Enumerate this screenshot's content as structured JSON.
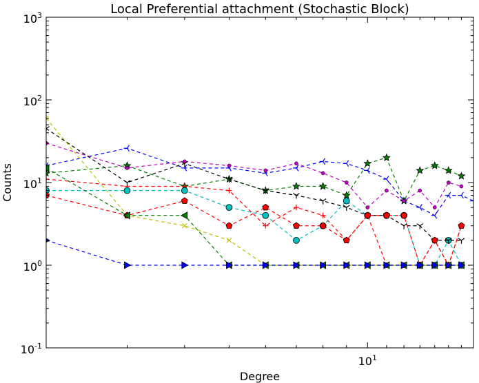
{
  "chart_data": {
    "type": "line",
    "title": "Local Preferential attachment (Stochastic Block)",
    "xlabel": "Degree",
    "ylabel": "Counts",
    "xscale": "log",
    "yscale": "log",
    "xlim": [
      2,
      17
    ],
    "ylim": [
      0.1,
      1000
    ],
    "grid": false,
    "legend": "none",
    "x_ticks": [
      {
        "value": 10,
        "base": "10",
        "exp": "1"
      }
    ],
    "y_ticks": [
      {
        "value": 0.1,
        "base": "10",
        "exp": "-1"
      },
      {
        "value": 1,
        "base": "10",
        "exp": "0"
      },
      {
        "value": 10,
        "base": "10",
        "exp": "1"
      },
      {
        "value": 100,
        "base": "10",
        "exp": "2"
      },
      {
        "value": 1000,
        "base": "10",
        "exp": "3"
      }
    ],
    "series": [
      {
        "color": "#0000ff",
        "marker": "tri_left",
        "points": [
          [
            2,
            16
          ],
          [
            3,
            26
          ],
          [
            4,
            15
          ],
          [
            5,
            15
          ],
          [
            6,
            13
          ],
          [
            7,
            15
          ],
          [
            8,
            18
          ],
          [
            9,
            17
          ],
          [
            10,
            14
          ],
          [
            11,
            11
          ],
          [
            12,
            6
          ],
          [
            13,
            5
          ],
          [
            14,
            4
          ],
          [
            15,
            7
          ],
          [
            16,
            7
          ],
          [
            17,
            6
          ]
        ]
      },
      {
        "color": "#008000",
        "marker": "star",
        "points": [
          [
            2,
            13
          ],
          [
            3,
            16
          ],
          [
            4,
            9
          ],
          [
            5,
            11
          ],
          [
            6,
            8
          ],
          [
            7,
            9
          ],
          [
            8,
            9
          ],
          [
            9,
            7
          ],
          [
            10,
            17
          ],
          [
            11,
            20
          ],
          [
            12,
            6
          ],
          [
            13,
            14
          ],
          [
            14,
            16
          ],
          [
            15,
            14
          ],
          [
            16,
            12
          ]
        ]
      },
      {
        "color": "#ff0000",
        "marker": "plus",
        "points": [
          [
            2,
            11
          ],
          [
            3,
            9
          ],
          [
            4,
            9
          ],
          [
            5,
            8
          ],
          [
            6,
            3
          ],
          [
            7,
            5
          ],
          [
            8,
            4
          ],
          [
            9,
            2
          ],
          [
            10,
            4
          ],
          [
            11,
            1
          ],
          [
            12,
            1
          ],
          [
            13,
            1
          ],
          [
            14,
            2
          ],
          [
            15,
            1
          ],
          [
            16,
            3
          ]
        ]
      },
      {
        "color": "#00bfbf",
        "marker": "circle",
        "points": [
          [
            2,
            8
          ],
          [
            3,
            8
          ],
          [
            4,
            8
          ],
          [
            5,
            5
          ],
          [
            6,
            4
          ],
          [
            7,
            2
          ],
          [
            8,
            3
          ],
          [
            9,
            6
          ],
          [
            10,
            4
          ],
          [
            11,
            4
          ],
          [
            12,
            4
          ],
          [
            13,
            1
          ],
          [
            14,
            1
          ],
          [
            15,
            2
          ],
          [
            16,
            1
          ]
        ]
      },
      {
        "color": "#bf00bf",
        "marker": "dot",
        "points": [
          [
            2,
            30
          ],
          [
            3,
            15
          ],
          [
            4,
            18
          ],
          [
            5,
            16
          ],
          [
            6,
            14
          ],
          [
            7,
            17
          ],
          [
            8,
            13
          ],
          [
            9,
            10
          ],
          [
            10,
            5
          ],
          [
            11,
            8
          ],
          [
            12,
            6
          ],
          [
            13,
            8
          ],
          [
            14,
            5
          ],
          [
            15,
            10
          ],
          [
            16,
            9
          ]
        ]
      },
      {
        "color": "#bfbf00",
        "marker": "x",
        "points": [
          [
            2,
            60
          ],
          [
            3,
            4
          ],
          [
            4,
            3
          ],
          [
            5,
            2
          ],
          [
            6,
            1
          ],
          [
            7,
            1
          ],
          [
            8,
            1
          ],
          [
            9,
            1
          ],
          [
            10,
            1
          ],
          [
            11,
            1
          ],
          [
            12,
            1
          ],
          [
            13,
            1
          ],
          [
            14,
            1
          ],
          [
            15,
            1
          ],
          [
            16,
            1
          ]
        ]
      },
      {
        "color": "#000000",
        "marker": "tri_down",
        "points": [
          [
            2,
            45
          ],
          [
            3,
            10
          ],
          [
            4,
            17
          ],
          [
            5,
            11
          ],
          [
            6,
            8
          ],
          [
            7,
            7
          ],
          [
            8,
            6
          ],
          [
            9,
            5
          ],
          [
            10,
            4
          ],
          [
            11,
            4
          ],
          [
            12,
            3
          ],
          [
            13,
            3
          ],
          [
            14,
            2
          ],
          [
            15,
            2
          ],
          [
            16,
            2
          ]
        ]
      },
      {
        "color": "#ff0000",
        "marker": "pentagon",
        "points": [
          [
            2,
            7
          ],
          [
            3,
            4
          ],
          [
            4,
            6
          ],
          [
            5,
            3
          ],
          [
            6,
            5
          ],
          [
            7,
            3
          ],
          [
            8,
            3
          ],
          [
            9,
            2
          ],
          [
            10,
            4
          ],
          [
            11,
            4
          ],
          [
            12,
            4
          ],
          [
            13,
            1
          ],
          [
            14,
            2
          ],
          [
            15,
            1
          ],
          [
            16,
            3
          ]
        ]
      },
      {
        "color": "#008000",
        "marker": "tri_left_filled",
        "points": [
          [
            2,
            15
          ],
          [
            3,
            4
          ],
          [
            4,
            4
          ],
          [
            5,
            1
          ],
          [
            6,
            1
          ],
          [
            7,
            1
          ],
          [
            8,
            1
          ],
          [
            9,
            1
          ],
          [
            10,
            1
          ],
          [
            11,
            1
          ],
          [
            12,
            1
          ],
          [
            13,
            1
          ],
          [
            14,
            1
          ],
          [
            15,
            1
          ],
          [
            16,
            1
          ]
        ]
      },
      {
        "color": "#0000ff",
        "marker": "tri_right",
        "points": [
          [
            2,
            2
          ],
          [
            3,
            1
          ],
          [
            4,
            1
          ],
          [
            5,
            1
          ],
          [
            6,
            1
          ],
          [
            7,
            1
          ],
          [
            8,
            1
          ],
          [
            9,
            1
          ],
          [
            10,
            1
          ],
          [
            11,
            1
          ],
          [
            12,
            1
          ],
          [
            13,
            1
          ],
          [
            14,
            1
          ],
          [
            15,
            1
          ],
          [
            16,
            1
          ]
        ]
      }
    ]
  }
}
